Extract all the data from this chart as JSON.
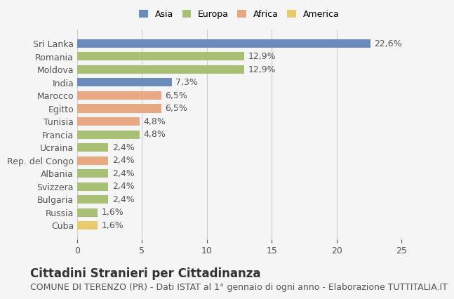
{
  "categories": [
    "Sri Lanka",
    "Romania",
    "Moldova",
    "India",
    "Marocco",
    "Egitto",
    "Tunisia",
    "Francia",
    "Ucraina",
    "Rep. del Congo",
    "Albania",
    "Svizzera",
    "Bulgaria",
    "Russia",
    "Cuba"
  ],
  "values": [
    22.6,
    12.9,
    12.9,
    7.3,
    6.5,
    6.5,
    4.8,
    4.8,
    2.4,
    2.4,
    2.4,
    2.4,
    2.4,
    1.6,
    1.6
  ],
  "labels": [
    "22,6%",
    "12,9%",
    "12,9%",
    "7,3%",
    "6,5%",
    "6,5%",
    "4,8%",
    "4,8%",
    "2,4%",
    "2,4%",
    "2,4%",
    "2,4%",
    "2,4%",
    "1,6%",
    "1,6%"
  ],
  "colors": [
    "#6b8cba",
    "#a8c074",
    "#a8c074",
    "#6b8cba",
    "#e8a882",
    "#e8a882",
    "#e8a882",
    "#a8c074",
    "#a8c074",
    "#e8a882",
    "#a8c074",
    "#a8c074",
    "#a8c074",
    "#a8c074",
    "#e8c96e"
  ],
  "continent_colors": {
    "Asia": "#6b8cba",
    "Europa": "#a8c074",
    "Africa": "#e8a882",
    "America": "#e8c96e"
  },
  "xlim": [
    0,
    25
  ],
  "xticks": [
    0,
    5,
    10,
    15,
    20,
    25
  ],
  "title": "Cittadini Stranieri per Cittadinanza",
  "subtitle": "COMUNE DI TERENZO (PR) - Dati ISTAT al 1° gennaio di ogni anno - Elaborazione TUTTITALIA.IT",
  "background_color": "#f5f5f5",
  "grid_color": "#cccccc",
  "label_fontsize": 9,
  "title_fontsize": 12,
  "subtitle_fontsize": 9
}
